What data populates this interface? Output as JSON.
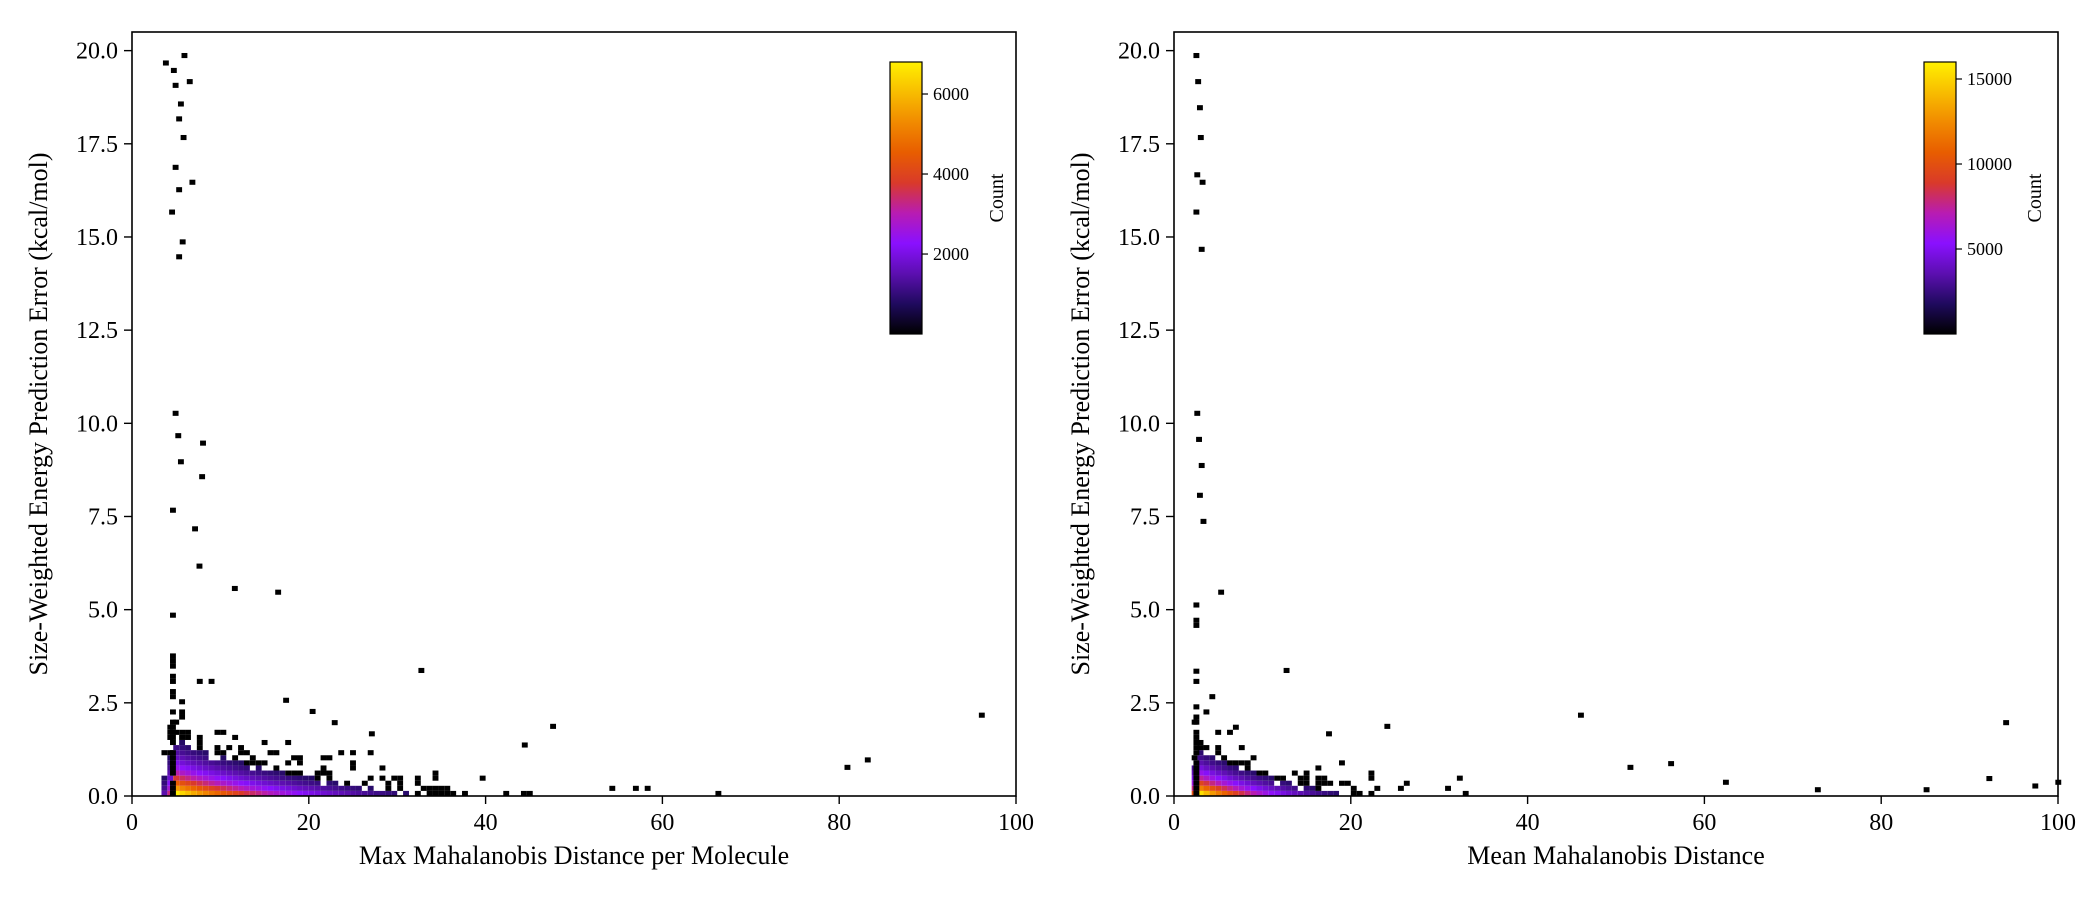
{
  "figure": {
    "colormap": [
      "#000000",
      "#1f0a5e",
      "#5c0fb0",
      "#8a10ff",
      "#b81cb2",
      "#d93a2a",
      "#e85d00",
      "#f18a00",
      "#f8bd00",
      "#fff000"
    ]
  },
  "chart_data": [
    {
      "type": "heatmap",
      "xlabel": "Max Mahalanobis Distance per Molecule",
      "ylabel": "Size-Weighted Energy Prediction Error (kcal/mol)",
      "xlim": [
        0,
        100
      ],
      "ylim": [
        0,
        20.5
      ],
      "xticks": [
        0,
        20,
        40,
        60,
        80,
        100
      ],
      "xtick_labels": [
        "0",
        "20",
        "40",
        "60",
        "80",
        "100"
      ],
      "yticks": [
        0,
        2.5,
        5,
        7.5,
        10,
        12.5,
        15,
        17.5,
        20
      ],
      "ytick_labels": [
        "0.0",
        "2.5",
        "5.0",
        "7.5",
        "10.0",
        "12.5",
        "15.0",
        "17.5",
        "20.0"
      ],
      "colorbar": {
        "label": "Count",
        "range": [
          1,
          6800
        ],
        "ticks": [
          2000,
          4000,
          6000
        ],
        "tick_labels": [
          "2000",
          "4000",
          "6000"
        ]
      },
      "peak": {
        "x": 4.6,
        "y": 0.2,
        "count": 6800
      },
      "grid": false,
      "outliers": [
        [
          3.5,
          19.6
        ],
        [
          4.4,
          19.4
        ],
        [
          4.6,
          19.0
        ],
        [
          5.2,
          18.5
        ],
        [
          5.6,
          19.8
        ],
        [
          6.2,
          19.1
        ],
        [
          5.0,
          18.1
        ],
        [
          5.5,
          17.6
        ],
        [
          4.6,
          16.8
        ],
        [
          5.0,
          16.2
        ],
        [
          4.2,
          15.6
        ],
        [
          5.4,
          14.8
        ],
        [
          5.0,
          14.4
        ],
        [
          6.5,
          16.4
        ],
        [
          4.6,
          10.2
        ],
        [
          4.9,
          9.6
        ],
        [
          5.2,
          8.9
        ],
        [
          7.7,
          9.4
        ],
        [
          7.6,
          8.5
        ],
        [
          4.3,
          7.6
        ],
        [
          6.8,
          7.1
        ],
        [
          7.3,
          6.1
        ],
        [
          11.3,
          5.5
        ],
        [
          16.2,
          5.4
        ],
        [
          32.4,
          3.3
        ],
        [
          47.3,
          1.8
        ],
        [
          95.8,
          2.1
        ],
        [
          82.9,
          0.9
        ],
        [
          80.6,
          0.7
        ],
        [
          44.1,
          1.3
        ],
        [
          26.8,
          1.6
        ],
        [
          22.6,
          1.9
        ],
        [
          20.1,
          2.2
        ],
        [
          17.1,
          2.5
        ]
      ]
    },
    {
      "type": "heatmap",
      "xlabel": "Mean Mahalanobis Distance",
      "ylabel": "Size-Weighted Energy Prediction Error (kcal/mol)",
      "xlim": [
        0,
        100
      ],
      "ylim": [
        0,
        20.5
      ],
      "xticks": [
        0,
        20,
        40,
        60,
        80,
        100
      ],
      "xtick_labels": [
        "0",
        "20",
        "40",
        "60",
        "80",
        "100"
      ],
      "yticks": [
        0,
        2.5,
        5,
        7.5,
        10,
        12.5,
        15,
        17.5,
        20
      ],
      "ytick_labels": [
        "0.0",
        "2.5",
        "5.0",
        "7.5",
        "10.0",
        "12.5",
        "15.0",
        "17.5",
        "20.0"
      ],
      "colorbar": {
        "label": "Count",
        "range": [
          1,
          16000
        ],
        "ticks": [
          5000,
          10000,
          15000
        ],
        "tick_labels": [
          "5000",
          "10000",
          "15000"
        ]
      },
      "peak": {
        "x": 2.4,
        "y": 0.15,
        "count": 16000
      },
      "grid": false,
      "outliers": [
        [
          2.2,
          19.8
        ],
        [
          2.4,
          19.1
        ],
        [
          2.6,
          18.4
        ],
        [
          2.7,
          17.6
        ],
        [
          2.3,
          16.6
        ],
        [
          2.9,
          16.4
        ],
        [
          2.2,
          15.6
        ],
        [
          2.8,
          14.6
        ],
        [
          2.3,
          10.2
        ],
        [
          2.5,
          9.5
        ],
        [
          2.8,
          8.8
        ],
        [
          2.6,
          8.0
        ],
        [
          3.0,
          7.3
        ],
        [
          5.0,
          5.4
        ],
        [
          12.4,
          3.3
        ],
        [
          45.7,
          2.1
        ],
        [
          93.8,
          1.9
        ],
        [
          23.8,
          1.8
        ],
        [
          17.2,
          1.6
        ],
        [
          91.9,
          0.4
        ],
        [
          99.7,
          0.3
        ],
        [
          97.1,
          0.2
        ],
        [
          84.8,
          0.1
        ],
        [
          72.5,
          0.1
        ],
        [
          62.1,
          0.3
        ],
        [
          55.9,
          0.8
        ],
        [
          51.3,
          0.7
        ]
      ]
    }
  ]
}
